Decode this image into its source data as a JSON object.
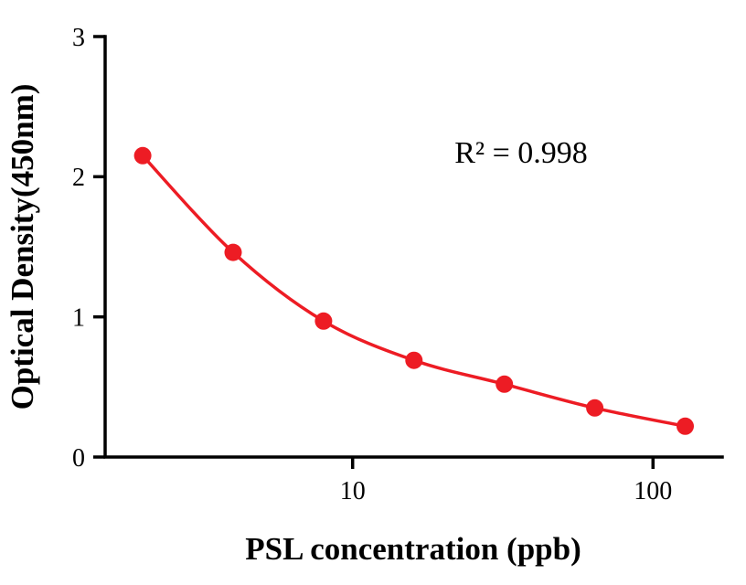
{
  "chart_data": {
    "type": "scatter",
    "title": "",
    "xlabel": "PSL concentration (ppb)",
    "ylabel": "Optical Density(450nm)",
    "annotation": "R² = 0.998",
    "x": [
      2,
      4,
      8,
      16,
      32,
      64,
      128
    ],
    "y": [
      2.15,
      1.46,
      0.97,
      0.69,
      0.52,
      0.35,
      0.22
    ],
    "x_scale": "log",
    "x_ticks": [
      10,
      100
    ],
    "x_tick_labels": [
      "10",
      "100"
    ],
    "y_ticks": [
      0,
      1,
      2,
      3
    ],
    "y_tick_labels": [
      "0",
      "1",
      "2",
      "3"
    ],
    "xlim": [
      1.5,
      170
    ],
    "ylim": [
      0,
      3
    ],
    "grid": false,
    "legend": null,
    "point_color": "#ed1c24",
    "line_color": "#ed1c24",
    "axis_color": "#000000"
  }
}
